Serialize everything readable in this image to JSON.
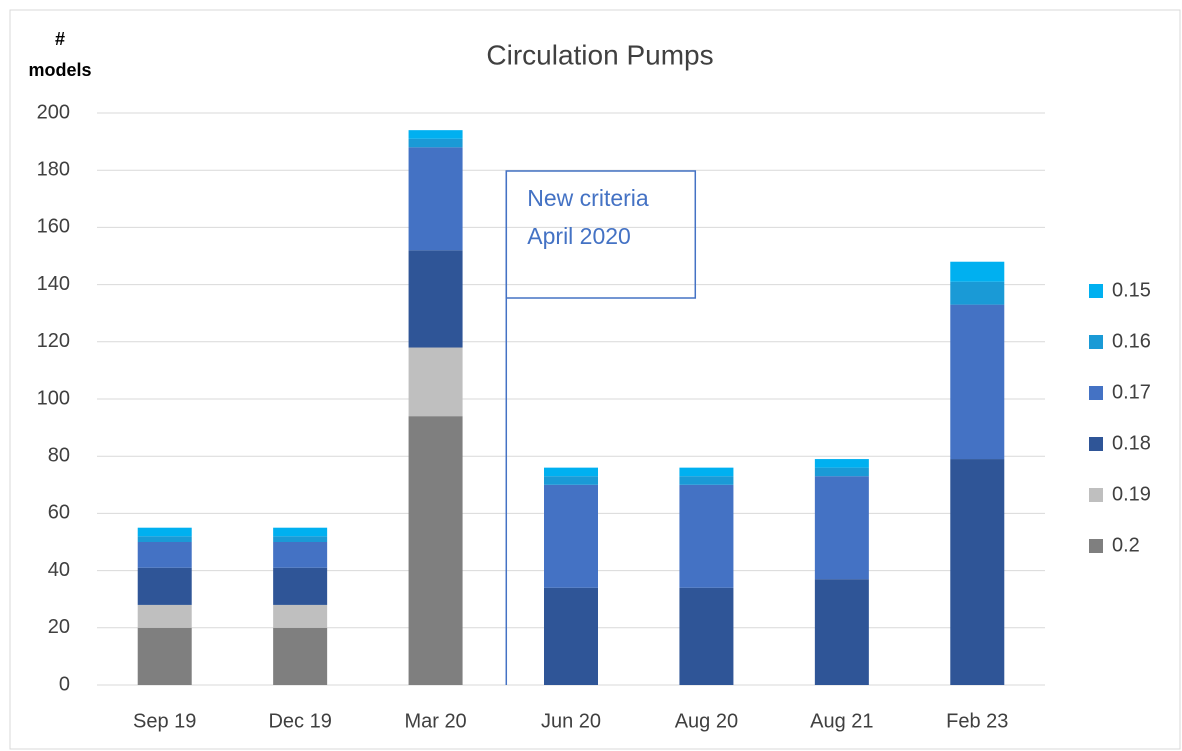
{
  "chart_data": {
    "type": "stacked-bar",
    "title": "Circulation Pumps",
    "ylabel": [
      "#",
      "models"
    ],
    "categories": [
      "Sep 19",
      "Dec 19",
      "Mar 20",
      "Jun 20",
      "Aug 20",
      "Aug 21",
      "Feb 23"
    ],
    "series": [
      {
        "name": "0.2",
        "color": "#7f7f7f",
        "values": [
          20,
          20,
          94,
          0,
          0,
          0,
          0
        ]
      },
      {
        "name": "0.19",
        "color": "#bfbfbf",
        "values": [
          8,
          8,
          24,
          0,
          0,
          0,
          0
        ]
      },
      {
        "name": "0.18",
        "color": "#2f5597",
        "values": [
          13,
          13,
          34,
          34,
          34,
          37,
          79
        ]
      },
      {
        "name": "0.17",
        "color": "#4472c4",
        "values": [
          9,
          9,
          36,
          36,
          36,
          36,
          54
        ]
      },
      {
        "name": "0.16",
        "color": "#1a9ad6",
        "values": [
          2,
          2,
          3,
          3,
          3,
          3,
          8
        ]
      },
      {
        "name": "0.15",
        "color": "#00b0f0",
        "values": [
          3,
          3,
          3,
          3,
          3,
          3,
          7
        ]
      }
    ],
    "annotation": [
      "New criteria",
      "April 2020"
    ],
    "ylim": [
      0,
      200
    ],
    "yticks": [
      0,
      20,
      40,
      60,
      80,
      100,
      120,
      140,
      160,
      180,
      200
    ],
    "grid": true,
    "legend": "right"
  }
}
